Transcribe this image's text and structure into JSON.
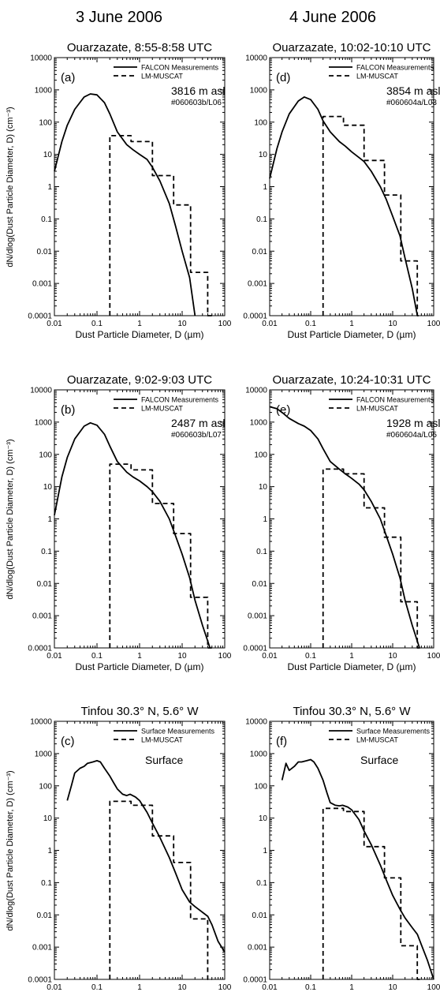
{
  "columns": [
    "3 June 2006",
    "4 June 2006"
  ],
  "x_axis_label": "Dust Particle Diameter, D (µm)",
  "y_axis_label": "dN/dlog(Dust Particle Diameter, D) (cm⁻³)",
  "x_ticks": [
    "0.01",
    "0.1",
    "1",
    "10",
    "100"
  ],
  "y_ticks": [
    "0.0001",
    "0.001",
    "0.01",
    "0.1",
    "1",
    "10",
    "100",
    "1000",
    "10000"
  ],
  "chart_data": [
    {
      "type": "line",
      "panel": "(a)",
      "title": "Ouarzazate, 8:55-8:58 UTC",
      "annotation": "3816 m asl",
      "subannotation": "#060603b/L06",
      "xscale": "log",
      "yscale": "log",
      "xlim": [
        0.01,
        100
      ],
      "ylim": [
        0.0001,
        10000
      ],
      "legend": "top-right",
      "series": [
        {
          "name": "FALCON Measurements",
          "style": "solid",
          "x": [
            0.01,
            0.015,
            0.02,
            0.03,
            0.05,
            0.07,
            0.1,
            0.15,
            0.2,
            0.3,
            0.5,
            0.7,
            1,
            1.5,
            2,
            3,
            5,
            7,
            10,
            15,
            20
          ],
          "y": [
            3,
            25,
            80,
            250,
            600,
            750,
            700,
            400,
            180,
            50,
            20,
            14,
            10,
            7,
            4,
            1.5,
            0.3,
            0.06,
            0.01,
            0.0015,
            0.0001
          ]
        },
        {
          "name": "LM-MUSCAT",
          "style": "dashed",
          "x": [
            0.2,
            0.2,
            0.63,
            0.63,
            2,
            2,
            6.3,
            6.3,
            15.8,
            15.8,
            39.8,
            39.8,
            50
          ],
          "y": [
            0.0001,
            38,
            38,
            25,
            25,
            2.2,
            2.2,
            0.27,
            0.27,
            0.0022,
            0.0022,
            0.0001,
            0.0001
          ]
        }
      ]
    },
    {
      "type": "line",
      "panel": "(b)",
      "title": "Ouarzazate, 9:02-9:03 UTC",
      "annotation": "2487 m asl",
      "subannotation": "#060603b/L07",
      "xscale": "log",
      "yscale": "log",
      "xlim": [
        0.01,
        100
      ],
      "ylim": [
        0.0001,
        10000
      ],
      "legend": "top-right",
      "series": [
        {
          "name": "FALCON Measurements",
          "style": "solid",
          "x": [
            0.01,
            0.015,
            0.02,
            0.03,
            0.05,
            0.07,
            0.1,
            0.15,
            0.2,
            0.3,
            0.5,
            0.7,
            1,
            1.5,
            2,
            3,
            5,
            7,
            10,
            15,
            20,
            30,
            45
          ],
          "y": [
            1.3,
            20,
            80,
            300,
            750,
            950,
            800,
            420,
            180,
            60,
            28,
            20,
            15,
            10,
            7,
            3.5,
            1,
            0.3,
            0.08,
            0.015,
            0.003,
            0.0005,
            0.0001
          ]
        },
        {
          "name": "LM-MUSCAT",
          "style": "dashed",
          "x": [
            0.2,
            0.2,
            0.63,
            0.63,
            2,
            2,
            6.3,
            6.3,
            15.8,
            15.8,
            39.8,
            39.8,
            50
          ],
          "y": [
            0.0001,
            50,
            50,
            33,
            33,
            3,
            3,
            0.35,
            0.35,
            0.0037,
            0.0037,
            0.0001,
            0.0001
          ]
        }
      ]
    },
    {
      "type": "line",
      "panel": "(c)",
      "title": "Tinfou 30.3° N, 5.6° W",
      "annotation": "Surface",
      "subannotation": "",
      "xscale": "log",
      "yscale": "log",
      "xlim": [
        0.01,
        100
      ],
      "ylim": [
        0.0001,
        10000
      ],
      "legend": "top-right",
      "series": [
        {
          "name": "Surface Measurements",
          "style": "solid",
          "x": [
            0.02,
            0.025,
            0.03,
            0.04,
            0.05,
            0.06,
            0.08,
            0.1,
            0.12,
            0.15,
            0.2,
            0.25,
            0.3,
            0.4,
            0.5,
            0.6,
            0.8,
            1,
            1.5,
            2,
            3,
            5,
            7,
            10,
            15,
            20,
            30,
            40,
            50,
            70,
            100
          ],
          "y": [
            35,
            100,
            250,
            350,
            400,
            500,
            550,
            600,
            550,
            350,
            200,
            120,
            80,
            55,
            50,
            55,
            45,
            35,
            15,
            7,
            2.5,
            0.6,
            0.2,
            0.06,
            0.025,
            0.018,
            0.012,
            0.009,
            0.005,
            0.0015,
            0.0007
          ]
        },
        {
          "name": "LM-MUSCAT",
          "style": "dashed",
          "x": [
            0.2,
            0.2,
            0.63,
            0.63,
            2,
            2,
            6.3,
            6.3,
            15.8,
            15.8,
            39.8,
            39.8,
            50
          ],
          "y": [
            0.0001,
            33,
            33,
            25,
            25,
            2.8,
            2.8,
            0.42,
            0.42,
            0.0075,
            0.0075,
            0.0001,
            0.0001
          ]
        }
      ]
    },
    {
      "type": "line",
      "panel": "(d)",
      "title": "Ouarzazate, 10:02-10:10 UTC",
      "annotation": "3854 m asl",
      "subannotation": "#060604a/L03",
      "xscale": "log",
      "yscale": "log",
      "xlim": [
        0.01,
        100
      ],
      "ylim": [
        0.0001,
        10000
      ],
      "legend": "top-right",
      "series": [
        {
          "name": "FALCON Measurements",
          "style": "solid",
          "x": [
            0.01,
            0.015,
            0.02,
            0.03,
            0.05,
            0.07,
            0.1,
            0.15,
            0.2,
            0.3,
            0.5,
            0.7,
            1,
            1.5,
            2,
            3,
            5,
            7,
            10,
            15,
            20,
            30,
            40
          ],
          "y": [
            1.8,
            15,
            50,
            180,
            450,
            600,
            500,
            250,
            110,
            50,
            25,
            18,
            12,
            8,
            6,
            3,
            1,
            0.4,
            0.12,
            0.03,
            0.006,
            0.0007,
            0.0001
          ]
        },
        {
          "name": "LM-MUSCAT",
          "style": "dashed",
          "x": [
            0.2,
            0.2,
            0.63,
            0.63,
            2,
            2,
            6.3,
            6.3,
            15.8,
            15.8,
            39.8,
            39.8,
            50
          ],
          "y": [
            0.0001,
            150,
            150,
            80,
            80,
            6.5,
            6.5,
            0.55,
            0.55,
            0.005,
            0.005,
            0.0001,
            0.0001
          ]
        }
      ]
    },
    {
      "type": "line",
      "panel": "(e)",
      "title": "Ouarzazate, 10:24-10:31 UTC",
      "annotation": "1928 m asl",
      "subannotation": "#060604a/L05",
      "xscale": "log",
      "yscale": "log",
      "xlim": [
        0.01,
        100
      ],
      "ylim": [
        0.0001,
        10000
      ],
      "legend": "top-right",
      "series": [
        {
          "name": "FALCON Measurements",
          "style": "solid",
          "x": [
            0.01,
            0.015,
            0.02,
            0.03,
            0.05,
            0.07,
            0.1,
            0.15,
            0.2,
            0.3,
            0.5,
            0.7,
            1,
            1.5,
            2,
            3,
            5,
            7,
            10,
            15,
            20,
            30,
            45
          ],
          "y": [
            3000,
            2600,
            2000,
            1300,
            900,
            750,
            550,
            300,
            150,
            60,
            35,
            25,
            18,
            12,
            8,
            3.5,
            1,
            0.3,
            0.08,
            0.015,
            0.003,
            0.0005,
            0.0001
          ]
        },
        {
          "name": "LM-MUSCAT",
          "style": "dashed",
          "x": [
            0.2,
            0.2,
            0.63,
            0.63,
            2,
            2,
            6.3,
            6.3,
            15.8,
            15.8,
            39.8,
            39.8,
            50
          ],
          "y": [
            0.0001,
            35,
            35,
            25,
            25,
            2.2,
            2.2,
            0.27,
            0.27,
            0.0027,
            0.0027,
            0.0001,
            0.0001
          ]
        }
      ]
    },
    {
      "type": "line",
      "panel": "(f)",
      "title": "Tinfou 30.3° N, 5.6° W",
      "annotation": "Surface",
      "subannotation": "",
      "xscale": "log",
      "yscale": "log",
      "xlim": [
        0.01,
        100
      ],
      "ylim": [
        0.0001,
        10000
      ],
      "legend": "top-right",
      "series": [
        {
          "name": "Surface Measurements",
          "style": "solid",
          "x": [
            0.02,
            0.025,
            0.03,
            0.04,
            0.05,
            0.06,
            0.08,
            0.1,
            0.12,
            0.15,
            0.2,
            0.25,
            0.3,
            0.4,
            0.5,
            0.6,
            0.8,
            1,
            1.5,
            2,
            3,
            5,
            7,
            10,
            15,
            20,
            30,
            40,
            50,
            70,
            100
          ],
          "y": [
            150,
            500,
            300,
            400,
            550,
            550,
            600,
            650,
            550,
            350,
            150,
            60,
            30,
            25,
            24,
            25,
            22,
            18,
            9,
            4,
            1.5,
            0.35,
            0.12,
            0.04,
            0.015,
            0.008,
            0.004,
            0.0025,
            0.0012,
            0.0004,
            0.0001
          ]
        },
        {
          "name": "LM-MUSCAT",
          "style": "dashed",
          "x": [
            0.2,
            0.2,
            0.63,
            0.63,
            2,
            2,
            6.3,
            6.3,
            15.8,
            15.8,
            39.8,
            39.8,
            50
          ],
          "y": [
            0.0001,
            20,
            20,
            16,
            16,
            1.3,
            1.3,
            0.14,
            0.14,
            0.0011,
            0.0011,
            0.0001,
            0.0001
          ]
        }
      ]
    }
  ]
}
